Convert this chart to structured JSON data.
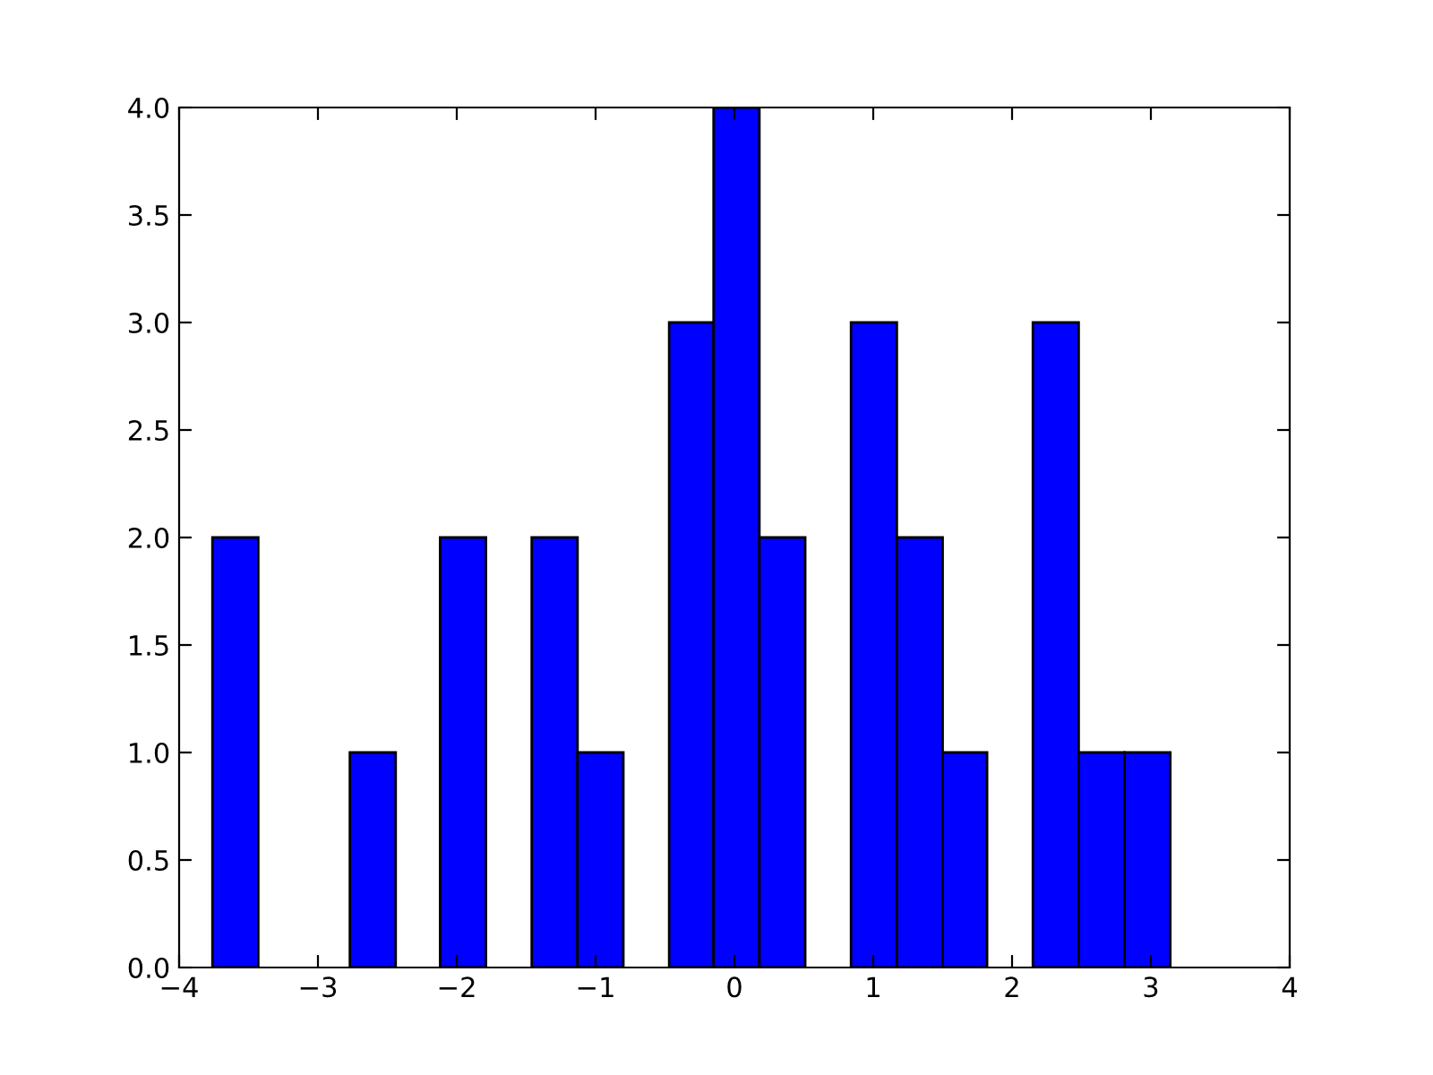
{
  "chart_data": {
    "type": "histogram",
    "bins": [
      -3.76,
      -3.43,
      -2.77,
      -2.44,
      -2.12,
      -1.79,
      -1.46,
      -1.13,
      -0.8,
      -0.47,
      -0.15,
      0.18,
      0.51,
      0.84,
      1.17,
      1.5,
      1.82,
      2.15,
      2.48,
      2.81,
      3.14
    ],
    "values": [
      2,
      0,
      1,
      0,
      2,
      0,
      2,
      1,
      0,
      3,
      4,
      2,
      0,
      3,
      2,
      1,
      0,
      3,
      1,
      1
    ],
    "color": "#0000ff",
    "xlim": [
      -4,
      4
    ],
    "xticks": [
      {
        "value": -4,
        "label": "−4"
      },
      {
        "value": -3,
        "label": "−3"
      },
      {
        "value": -2,
        "label": "−2"
      },
      {
        "value": -1,
        "label": "−1"
      },
      0,
      1,
      2,
      3,
      4
    ],
    "ylim": [
      0,
      4
    ],
    "yticks": [
      {
        "value": 0,
        "label": "0.0"
      },
      {
        "value": 0.5,
        "label": "0.5"
      },
      {
        "value": 1,
        "label": "1.0"
      },
      {
        "value": 1.5,
        "label": "1.5"
      },
      {
        "value": 2,
        "label": "2.0"
      },
      {
        "value": 2.5,
        "label": "2.5"
      },
      {
        "value": 3,
        "label": "3.0"
      },
      {
        "value": 3.5,
        "label": "3.5"
      },
      {
        "value": 4,
        "label": "4.0"
      }
    ],
    "grid": false
  }
}
